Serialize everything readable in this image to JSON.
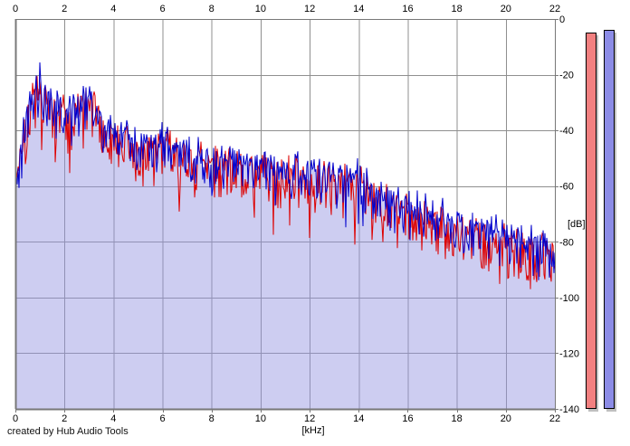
{
  "app": {
    "credit": "created by Hub Audio Tools"
  },
  "chart_data": {
    "type": "line",
    "x_axis": {
      "unit_label": "[kHz]",
      "min": 0,
      "max": 22,
      "ticks": [
        0,
        2,
        4,
        6,
        8,
        10,
        12,
        14,
        16,
        18,
        20,
        22
      ],
      "tick_label_position": "top and bottom"
    },
    "y_axis": {
      "unit_label": "[dB]",
      "min": -140,
      "max": 0,
      "ticks": [
        0,
        -20,
        -40,
        -60,
        -80,
        -100,
        -120,
        -140
      ],
      "tick_label_position": "right"
    },
    "grid": {
      "visible": true,
      "color": "#8f8f8f",
      "border_color": "#787878"
    },
    "series": [
      {
        "name": "spectrum-trace-red",
        "color": "#dd0000",
        "envelope_khz": [
          0,
          0.25,
          0.5,
          0.75,
          1,
          1.25,
          1.5,
          2,
          2.5,
          3,
          3.25,
          3.5,
          4,
          4.5,
          5,
          5.5,
          6,
          6.25,
          6.5,
          7,
          7.5,
          8,
          8.5,
          9,
          9.5,
          10,
          10.5,
          11,
          11.5,
          12,
          12.5,
          13,
          13.5,
          14,
          14.25,
          14.5,
          15,
          15.5,
          16,
          16.5,
          17,
          17.5,
          18,
          18.5,
          19,
          19.5,
          20,
          20.5,
          21,
          21.5,
          22
        ],
        "envelope_db": [
          -63,
          -47,
          -35,
          -27,
          -24,
          -28,
          -31,
          -34,
          -34,
          -28,
          -31,
          -38,
          -43,
          -44,
          -46,
          -47,
          -45,
          -43,
          -48,
          -49,
          -51,
          -52,
          -53,
          -54,
          -54,
          -55,
          -55,
          -56,
          -56,
          -57,
          -57,
          -58,
          -59,
          -60,
          -61,
          -64,
          -66,
          -68,
          -69,
          -71,
          -73,
          -74,
          -76,
          -77,
          -78,
          -79,
          -80,
          -81,
          -82,
          -83,
          -85
        ],
        "noise": {
          "seed": 77,
          "up_db": 5,
          "down_db": 13,
          "deep_chance": 0.05,
          "deep_extra_db": 14
        }
      },
      {
        "name": "spectrum-trace-blue",
        "color": "#0000cc",
        "fill_color": "rgba(148,148,226,0.47)",
        "envelope_khz": [
          0,
          0.25,
          0.5,
          0.75,
          1,
          1.25,
          1.5,
          2,
          2.5,
          3,
          3.25,
          3.5,
          4,
          4.5,
          5,
          5.5,
          6,
          6.25,
          6.5,
          7,
          7.5,
          8,
          8.5,
          9,
          9.5,
          10,
          10.5,
          11,
          11.5,
          12,
          12.5,
          13,
          13.5,
          14,
          14.25,
          14.5,
          15,
          15.5,
          16,
          16.5,
          17,
          17.5,
          18,
          18.5,
          19,
          19.5,
          20,
          20.5,
          21,
          21.5,
          22
        ],
        "envelope_db": [
          -62,
          -46,
          -34,
          -26,
          -23,
          -27,
          -30,
          -33,
          -33,
          -27,
          -30,
          -37,
          -42,
          -43,
          -45,
          -46,
          -44,
          -42,
          -47,
          -48,
          -50,
          -51,
          -52,
          -52,
          -53,
          -53,
          -54,
          -54,
          -55,
          -55,
          -56,
          -57,
          -57,
          -58,
          -59,
          -62,
          -64,
          -66,
          -67,
          -69,
          -71,
          -72,
          -74,
          -75,
          -76,
          -77,
          -78,
          -79,
          -80,
          -81,
          -83
        ],
        "noise": {
          "seed": 42,
          "up_db": 5,
          "down_db": 11,
          "deep_chance": 0.02,
          "deep_extra_db": 10
        }
      }
    ],
    "shared_noise": {
      "seed": 7,
      "amp_db": 3
    },
    "meters": {
      "min_db": -140,
      "max_db": 0,
      "shadow_color": "#c0c0c0",
      "border_color": "#000000",
      "bars": [
        {
          "name": "level-meter-red",
          "value_db": -5,
          "color": "#f28080"
        },
        {
          "name": "level-meter-blue",
          "value_db": -4,
          "color": "#8c8ce6"
        }
      ]
    }
  }
}
